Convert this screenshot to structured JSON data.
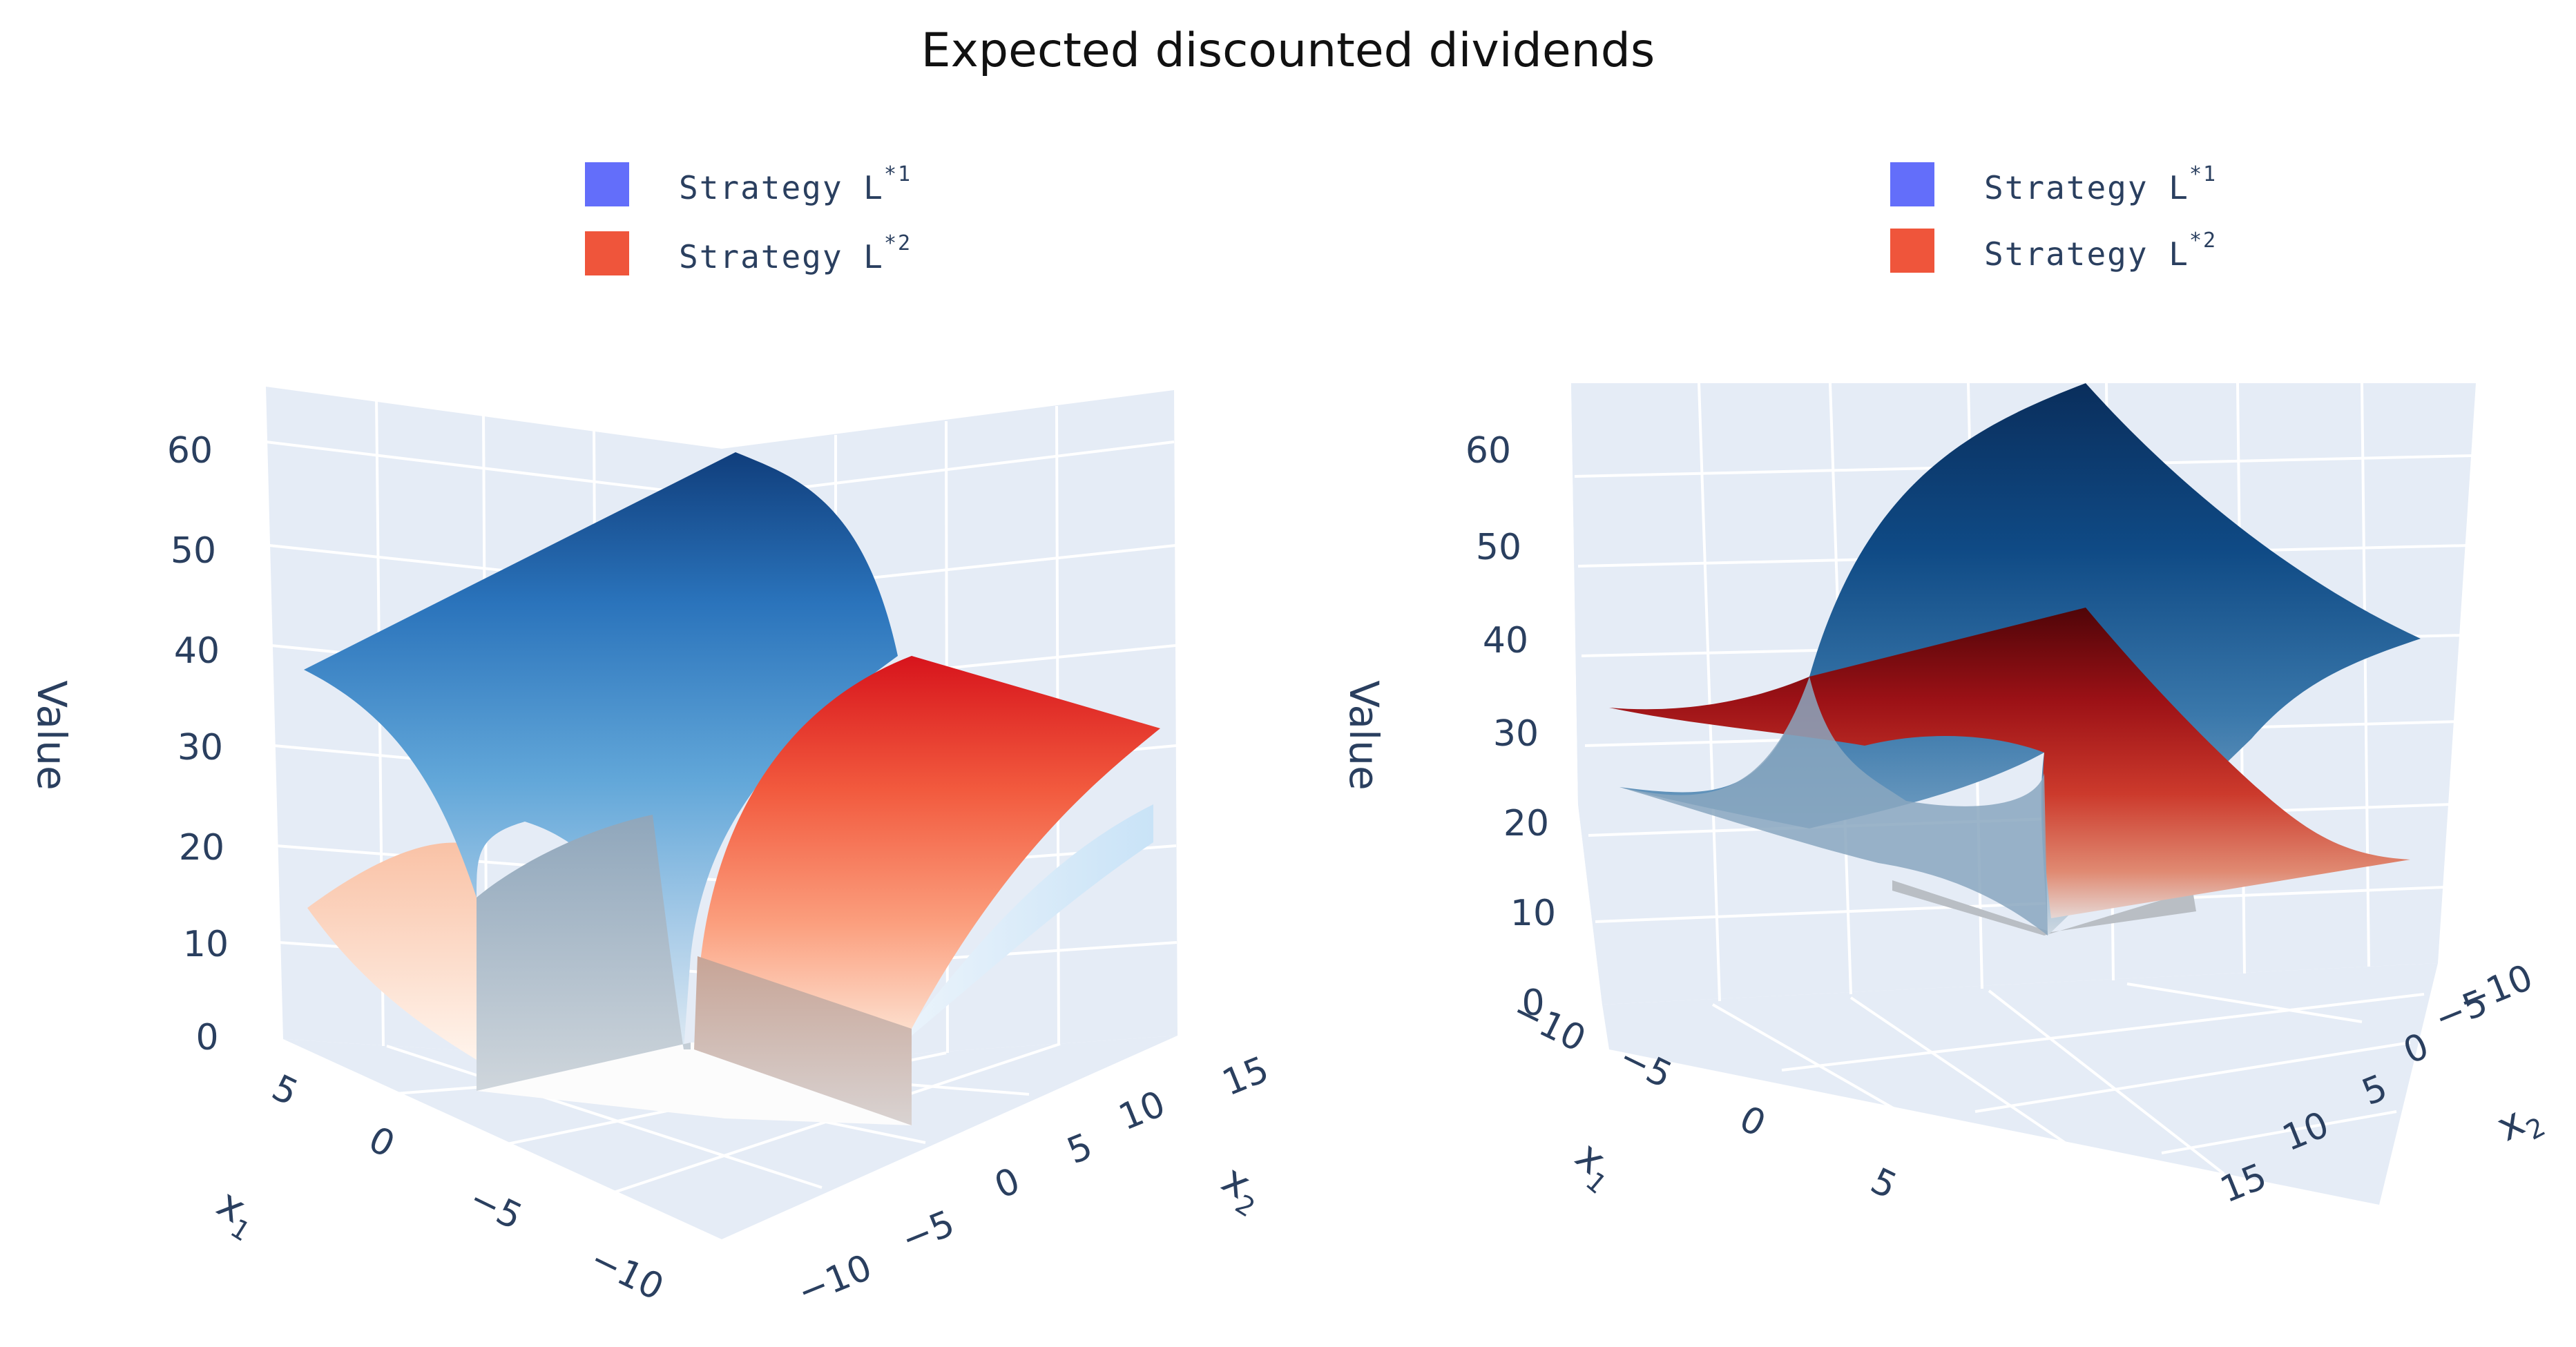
{
  "title": "Expected discounted dividends",
  "colors": {
    "legend_l1": "#636efa",
    "legend_l2": "#ef553b",
    "grid_bg": "#e5ecf6",
    "grid_line": "#ffffff",
    "blue_dark": "#0b3d7a",
    "blue_light": "#c8dced",
    "red_dark": "#7f0a0a",
    "red_light": "#fde7da"
  },
  "chart_data": [
    {
      "type": "surface3d",
      "panel": "left",
      "title": "Expected discounted dividends",
      "xlabel": "x1",
      "ylabel": "x2",
      "zlabel": "Value",
      "legend": [
        {
          "name": "Strategy L*1",
          "base": "Strategy L",
          "sup": "*1",
          "color": "#636efa"
        },
        {
          "name": "Strategy L*2",
          "base": "Strategy L",
          "sup": "*2",
          "color": "#ef553b"
        }
      ],
      "x_ticks": [
        "5",
        "0",
        "−5",
        "−10"
      ],
      "y_ticks": [
        "15",
        "10",
        "5",
        "0",
        "−5",
        "−10"
      ],
      "z_ticks": [
        "60",
        "50",
        "40",
        "30",
        "20",
        "10",
        "0"
      ],
      "zlim": [
        0,
        65
      ],
      "series": [
        {
          "name": "Strategy L*1",
          "colorscale": "Blues",
          "z_range": [
            0,
            62
          ]
        },
        {
          "name": "Strategy L*2",
          "colorscale": "Reds",
          "z_range": [
            0,
            38
          ]
        }
      ]
    },
    {
      "type": "surface3d",
      "panel": "right",
      "xlabel": "x1",
      "ylabel": "x2",
      "zlabel": "Value",
      "legend": [
        {
          "name": "Strategy L*1",
          "base": "Strategy L",
          "sup": "*1",
          "color": "#636efa"
        },
        {
          "name": "Strategy L*2",
          "base": "Strategy L",
          "sup": "*2",
          "color": "#ef553b"
        }
      ],
      "x_ticks": [
        "−10",
        "−5",
        "0",
        "5"
      ],
      "y_ticks": [
        "−10",
        "−5",
        "0",
        "5",
        "10",
        "15"
      ],
      "z_ticks": [
        "60",
        "50",
        "40",
        "30",
        "20",
        "10",
        "0"
      ],
      "zlim": [
        0,
        65
      ],
      "series": [
        {
          "name": "Strategy L*1",
          "colorscale": "Blues",
          "z_range": [
            0,
            66
          ]
        },
        {
          "name": "Strategy L*2",
          "colorscale": "Reds",
          "z_range": [
            0,
            40
          ]
        }
      ]
    }
  ]
}
